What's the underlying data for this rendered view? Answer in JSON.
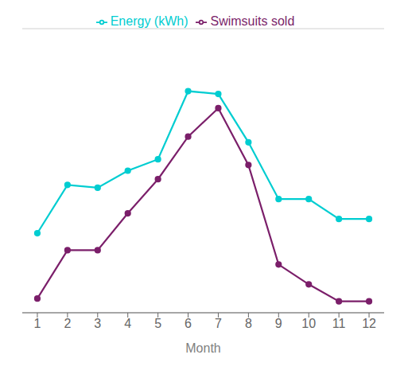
{
  "chart_data": {
    "type": "line",
    "x": [
      1,
      2,
      3,
      4,
      5,
      6,
      7,
      8,
      9,
      10,
      11,
      12
    ],
    "series": [
      {
        "name": "Swimsuits sold",
        "color": "#7B1F6A",
        "marker": "circle",
        "values": [
          5,
          22,
          22,
          35,
          47,
          62,
          72,
          52,
          17,
          10,
          4,
          4
        ]
      },
      {
        "name": "Energy (kWh)",
        "color": "#00CDD1",
        "marker": "circle",
        "values": [
          28,
          45,
          44,
          50,
          54,
          78,
          77,
          60,
          40,
          40,
          33,
          33
        ]
      }
    ],
    "xlabel": "Month",
    "xlim": [
      0.5,
      12.5
    ],
    "xticks": [
      1,
      2,
      3,
      4,
      5,
      6,
      7,
      8,
      9,
      10,
      11,
      12
    ],
    "ylim": [
      0,
      100
    ],
    "yticks": [
      0,
      20,
      40,
      60,
      80,
      100
    ],
    "grid": true,
    "legend": "top",
    "tick_labels": "x"
  }
}
